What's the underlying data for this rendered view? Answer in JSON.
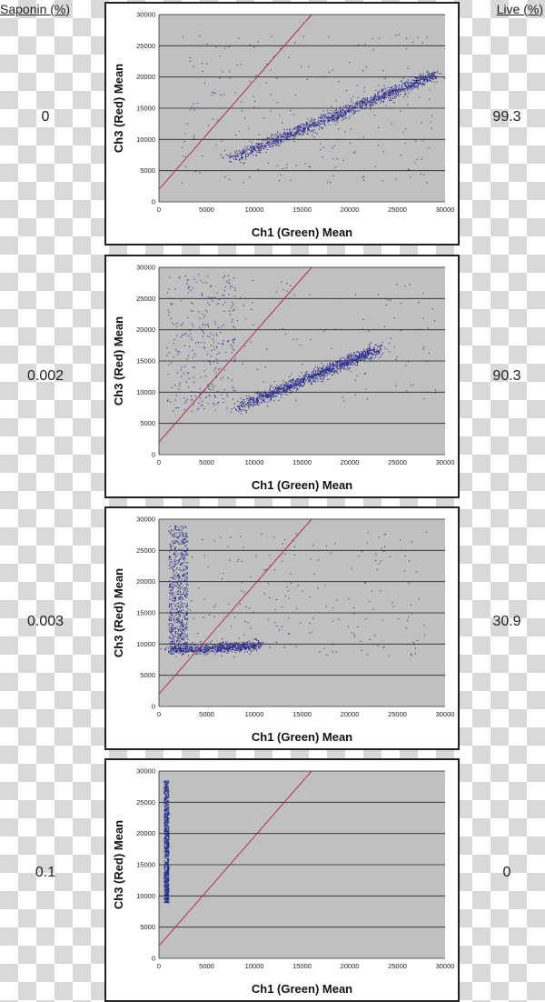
{
  "headers": {
    "left": "Saponin (%)",
    "right": "Live (%)"
  },
  "colors": {
    "plot_bg": "#c0c0c0",
    "grid": "#222222",
    "points": "#2b2b8c",
    "diagonal": "#b03050"
  },
  "chart_data": [
    {
      "type": "scatter",
      "saponin": "0",
      "live": "99.3",
      "xlabel": "Ch1 (Green) Mean",
      "ylabel": "Ch3 (Red) Mean",
      "xlim": [
        0,
        30000
      ],
      "ylim": [
        0,
        30000
      ],
      "xticks": [
        "0",
        "5000",
        "10000",
        "15000",
        "20000",
        "25000",
        "30000"
      ],
      "yticks": [
        "0",
        "5000",
        "10000",
        "15000",
        "20000",
        "25000",
        "30000"
      ],
      "reference_line": {
        "x": [
          0,
          16000
        ],
        "y": [
          2000,
          30000
        ]
      },
      "clusters": [
        {
          "kind": "band",
          "x": [
            7500,
            29000
          ],
          "y": [
            7000,
            20500
          ],
          "spread": 450,
          "n": 1400
        },
        {
          "kind": "sparse",
          "x": [
            2000,
            29000
          ],
          "y": [
            3000,
            27000
          ],
          "n": 220
        }
      ]
    },
    {
      "type": "scatter",
      "saponin": "0.002",
      "live": "90.3",
      "xlabel": "Ch1 (Green) Mean",
      "ylabel": "Ch3 (Red) Mean",
      "xlim": [
        0,
        30000
      ],
      "ylim": [
        0,
        30000
      ],
      "xticks": [
        "0",
        "5000",
        "10000",
        "15000",
        "20000",
        "25000",
        "30000"
      ],
      "yticks": [
        "0",
        "5000",
        "10000",
        "15000",
        "20000",
        "25000",
        "30000"
      ],
      "reference_line": {
        "x": [
          0,
          16000
        ],
        "y": [
          2000,
          30000
        ]
      },
      "clusters": [
        {
          "kind": "band",
          "x": [
            8000,
            23000
          ],
          "y": [
            7500,
            17000
          ],
          "spread": 450,
          "n": 1300
        },
        {
          "kind": "sparse",
          "x": [
            800,
            8000
          ],
          "y": [
            7000,
            29000
          ],
          "n": 300
        },
        {
          "kind": "sparse",
          "x": [
            5000,
            29000
          ],
          "y": [
            8000,
            28000
          ],
          "n": 120
        }
      ]
    },
    {
      "type": "scatter",
      "saponin": "0.003",
      "live": "30.9",
      "xlabel": "Ch1 (Green) Mean",
      "ylabel": "Ch3 (Red) Mean",
      "xlim": [
        0,
        30000
      ],
      "ylim": [
        0,
        30000
      ],
      "xticks": [
        "0",
        "5000",
        "10000",
        "15000",
        "20000",
        "25000",
        "30000"
      ],
      "yticks": [
        "0",
        "5000",
        "10000",
        "15000",
        "20000",
        "25000",
        "30000"
      ],
      "reference_line": {
        "x": [
          0,
          16000
        ],
        "y": [
          2000,
          30000
        ]
      },
      "clusters": [
        {
          "kind": "vertical",
          "x": [
            1000,
            3000
          ],
          "y": [
            9000,
            29000
          ],
          "n": 700
        },
        {
          "kind": "band",
          "x": [
            1000,
            10500
          ],
          "y": [
            9000,
            9800
          ],
          "spread": 400,
          "n": 700
        },
        {
          "kind": "sparse",
          "x": [
            2000,
            28000
          ],
          "y": [
            8000,
            28000
          ],
          "n": 200
        }
      ]
    },
    {
      "type": "scatter",
      "saponin": "0.1",
      "live": "0",
      "xlabel": "Ch1 (Green) Mean",
      "ylabel": "Ch3 (Red) Mean",
      "xlim": [
        0,
        30000
      ],
      "ylim": [
        0,
        30000
      ],
      "xticks": [
        "0",
        "5000",
        "10000",
        "15000",
        "20000",
        "25000",
        "30000"
      ],
      "yticks": [
        "0",
        "5000",
        "10000",
        "15000",
        "20000",
        "25000",
        "30000"
      ],
      "reference_line": {
        "x": [
          0,
          16000
        ],
        "y": [
          2000,
          30000
        ]
      },
      "clusters": [
        {
          "kind": "vertical",
          "x": [
            500,
            1000
          ],
          "y": [
            9000,
            28500
          ],
          "n": 900
        }
      ]
    }
  ]
}
